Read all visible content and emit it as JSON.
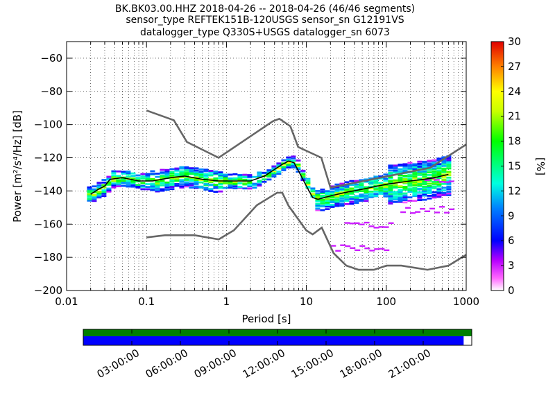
{
  "title": {
    "line1": "BK.BK03.00.HHZ   2018-04-26 -- 2018-04-26  (46/46 segments)",
    "line2": "sensor_type REFTEK151B-120USGS sensor_sn G12191VS",
    "line3": "datalogger_type Q330S+USGS datalogger_sn 6073"
  },
  "chart_data": {
    "type": "heatmap",
    "xlabel": "Period [s]",
    "ylabel": "Power [m²/s⁴/Hz] [dB]",
    "xscale": "log",
    "xlim": [
      0.01,
      1000
    ],
    "ylim": [
      -200,
      -50
    ],
    "x_ticks": [
      "0.01",
      "0.1",
      "1",
      "10",
      "100",
      "1000"
    ],
    "x_tick_values": [
      0.01,
      0.1,
      1,
      10,
      100,
      1000
    ],
    "y_ticks": [
      "−60",
      "−80",
      "−100",
      "−120",
      "−140",
      "−160",
      "−180",
      "−200"
    ],
    "y_tick_values": [
      -60,
      -80,
      -100,
      -120,
      -140,
      -160,
      -180,
      -200
    ],
    "grid": true,
    "colorbar": {
      "label": "[%]",
      "ticks": [
        "0",
        "3",
        "6",
        "9",
        "12",
        "15",
        "18",
        "21",
        "24",
        "27",
        "30"
      ],
      "min": 0,
      "max": 30
    },
    "noise_models": {
      "high": {
        "name": "NHNM",
        "periods": [
          0.1,
          0.22,
          0.32,
          0.8,
          3.8,
          4.6,
          6.3,
          7.9,
          15.4,
          20,
          354.8,
          1000
        ],
        "power": [
          -91.5,
          -97.4,
          -110.5,
          -120,
          -98,
          -96.5,
          -101,
          -113.5,
          -120,
          -138,
          -126,
          -112
        ]
      },
      "low": {
        "name": "NLNM",
        "periods": [
          0.1,
          0.17,
          0.4,
          0.8,
          1.24,
          2.4,
          4.3,
          5,
          6,
          10,
          12,
          15.6,
          21.9,
          31.6,
          45,
          70,
          101,
          154,
          328,
          600,
          1000
        ],
        "power": [
          -168,
          -166.7,
          -166.7,
          -169.2,
          -163.7,
          -148.6,
          -141.1,
          -141.1,
          -149,
          -163.8,
          -166.2,
          -162.1,
          -177.5,
          -185,
          -187.5,
          -187.5,
          -185,
          -185,
          -187.5,
          -185,
          -178.5
        ]
      }
    },
    "mode_curve": {
      "periods": [
        0.02,
        0.025,
        0.03,
        0.035,
        0.05,
        0.08,
        0.12,
        0.2,
        0.3,
        0.5,
        0.8,
        1.2,
        2,
        3,
        4,
        5,
        6,
        7,
        8,
        10,
        12,
        14,
        20,
        30,
        50,
        100,
        200,
        300,
        400,
        600
      ],
      "power": [
        -142,
        -139,
        -137,
        -133,
        -132,
        -134,
        -134,
        -132,
        -131,
        -133,
        -134,
        -134,
        -134,
        -131,
        -127,
        -124,
        -122,
        -123,
        -128,
        -137,
        -144,
        -145,
        -143,
        -141,
        -139,
        -136,
        -134,
        -133,
        -132,
        -130
      ]
    },
    "density_bands": [
      {
        "pmin": 0.018,
        "pmax": 0.11,
        "lo": -138,
        "hi": -128
      },
      {
        "pmin": 0.11,
        "pmax": 0.8,
        "lo": -138,
        "hi": -124
      },
      {
        "pmin": 0.8,
        "pmax": 2.5,
        "lo": -138,
        "hi": -129
      },
      {
        "pmin": 12,
        "pmax": 100,
        "lo": -148,
        "hi": -133
      },
      {
        "pmin": 100,
        "pmax": 630,
        "lo": -150,
        "hi": -124
      }
    ],
    "outlier_tracks": [
      {
        "pmin": 20,
        "pmax": 100,
        "power": -174
      },
      {
        "pmin": 30,
        "pmax": 120,
        "power": -160
      },
      {
        "pmin": 150,
        "pmax": 630,
        "power": -151
      },
      {
        "pmin": 300,
        "pmax": 630,
        "power": -133
      }
    ]
  },
  "timeline": {
    "ticks": [
      "03:00:00",
      "06:00:00",
      "09:00:00",
      "12:00:00",
      "15:00:00",
      "18:00:00",
      "21:00:00"
    ],
    "tick_hours": [
      3,
      6,
      9,
      12,
      15,
      18,
      21
    ],
    "span_hours": 24,
    "coverage_hours": 23.5,
    "top_color": "#007f00",
    "bottom_color": "#0000ff"
  }
}
